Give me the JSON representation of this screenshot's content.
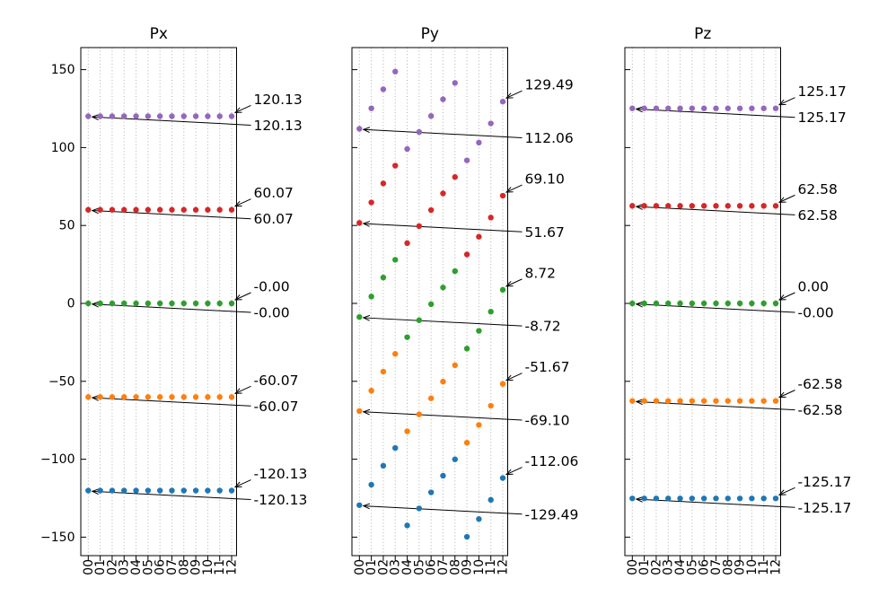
{
  "figure": {
    "background": "#ffffff",
    "grid_color": "#b0b0b0",
    "axis_color": "#000000",
    "annotation_color": "#000000"
  },
  "chart_data": [
    {
      "type": "scatter",
      "title": "Px",
      "x_labels": [
        "00",
        "01",
        "02",
        "03",
        "04",
        "05",
        "06",
        "07",
        "08",
        "09",
        "10",
        "11",
        "12"
      ],
      "ylim": [
        -163,
        164
      ],
      "yticks": [
        150,
        100,
        50,
        0,
        -50,
        -100,
        -150
      ],
      "ytick_labels": [
        "150",
        "100",
        "50",
        "0",
        "−50",
        "−100",
        "−150"
      ],
      "show_ytick_labels": true,
      "grid": "vertical-dotted",
      "legend": "none",
      "series": [
        {
          "name": "series-purple",
          "color": "#9467bd",
          "values": [
            120.13,
            120.13,
            120.13,
            120.13,
            120.13,
            120.13,
            120.13,
            120.13,
            120.13,
            120.13,
            120.13,
            120.13,
            120.13
          ]
        },
        {
          "name": "series-red",
          "color": "#d62728",
          "values": [
            60.07,
            60.07,
            60.07,
            60.07,
            60.07,
            60.07,
            60.07,
            60.07,
            60.07,
            60.07,
            60.07,
            60.07,
            60.07
          ]
        },
        {
          "name": "series-green",
          "color": "#2ca02c",
          "values": [
            0,
            0,
            0,
            0,
            0,
            0,
            0,
            0,
            0,
            0,
            0,
            0,
            0
          ]
        },
        {
          "name": "series-orange",
          "color": "#ff7f0e",
          "values": [
            -60.07,
            -60.07,
            -60.07,
            -60.07,
            -60.07,
            -60.07,
            -60.07,
            -60.07,
            -60.07,
            -60.07,
            -60.07,
            -60.07,
            -60.07
          ]
        },
        {
          "name": "series-blue",
          "color": "#1f77b4",
          "values": [
            -120.13,
            -120.13,
            -120.13,
            -120.13,
            -120.13,
            -120.13,
            -120.13,
            -120.13,
            -120.13,
            -120.13,
            -120.13,
            -120.13,
            -120.13
          ]
        }
      ],
      "annotations": [
        {
          "label": "120.13",
          "series": 0,
          "point": "last"
        },
        {
          "label": "120.13",
          "series": 0,
          "point": "first"
        },
        {
          "label": "60.07",
          "series": 1,
          "point": "last"
        },
        {
          "label": "60.07",
          "series": 1,
          "point": "first"
        },
        {
          "label": "-0.00",
          "series": 2,
          "point": "last"
        },
        {
          "label": "-0.00",
          "series": 2,
          "point": "first"
        },
        {
          "label": "-60.07",
          "series": 3,
          "point": "last"
        },
        {
          "label": "-60.07",
          "series": 3,
          "point": "first"
        },
        {
          "label": "-120.13",
          "series": 4,
          "point": "last"
        },
        {
          "label": "-120.13",
          "series": 4,
          "point": "first"
        }
      ]
    },
    {
      "type": "scatter",
      "title": "Py",
      "x_labels": [
        "00",
        "01",
        "02",
        "03",
        "04",
        "05",
        "06",
        "07",
        "08",
        "09",
        "10",
        "11",
        "12"
      ],
      "ylim": [
        -163,
        164
      ],
      "yticks": [
        150,
        100,
        50,
        0,
        -50,
        -100,
        -150
      ],
      "ytick_labels": [],
      "show_ytick_labels": false,
      "grid": "vertical-dotted",
      "legend": "none",
      "series": [
        {
          "name": "series-purple",
          "color": "#9467bd",
          "values": [
            112.06,
            125.18,
            137.38,
            148.78,
            99.08,
            109.98,
            120.28,
            130.98,
            141.48,
            91.78,
            103.18,
            115.48,
            129.49
          ]
        },
        {
          "name": "series-red",
          "color": "#d62728",
          "values": [
            51.67,
            64.79,
            76.99,
            88.39,
            38.69,
            49.59,
            59.89,
            70.59,
            81.09,
            31.39,
            42.79,
            55.09,
            69.1
          ]
        },
        {
          "name": "series-green",
          "color": "#2ca02c",
          "values": [
            -8.72,
            4.4,
            16.6,
            28.0,
            -21.7,
            -10.8,
            -0.5,
            10.2,
            20.7,
            -29.0,
            -17.6,
            -5.3,
            8.72
          ]
        },
        {
          "name": "series-orange",
          "color": "#ff7f0e",
          "values": [
            -69.1,
            -55.99,
            -43.79,
            -32.39,
            -82.09,
            -71.19,
            -60.89,
            -50.19,
            -39.69,
            -89.39,
            -77.99,
            -65.69,
            -51.67
          ]
        },
        {
          "name": "series-blue",
          "color": "#1f77b4",
          "values": [
            -129.49,
            -116.38,
            -104.18,
            -92.78,
            -142.48,
            -131.58,
            -121.28,
            -110.58,
            -100.08,
            -149.78,
            -138.38,
            -126.08,
            -112.06
          ]
        }
      ],
      "annotations": [
        {
          "label": "129.49",
          "series": 0,
          "point": "last"
        },
        {
          "label": "112.06",
          "series": 0,
          "point": "first"
        },
        {
          "label": "69.10",
          "series": 1,
          "point": "last"
        },
        {
          "label": "51.67",
          "series": 1,
          "point": "first"
        },
        {
          "label": "8.72",
          "series": 2,
          "point": "last"
        },
        {
          "label": "-8.72",
          "series": 2,
          "point": "first"
        },
        {
          "label": "-51.67",
          "series": 3,
          "point": "last"
        },
        {
          "label": "-69.10",
          "series": 3,
          "point": "first"
        },
        {
          "label": "-112.06",
          "series": 4,
          "point": "last"
        },
        {
          "label": "-129.49",
          "series": 4,
          "point": "first"
        }
      ]
    },
    {
      "type": "scatter",
      "title": "Pz",
      "x_labels": [
        "00",
        "01",
        "02",
        "03",
        "04",
        "05",
        "06",
        "07",
        "08",
        "09",
        "10",
        "11",
        "12"
      ],
      "ylim": [
        -163,
        164
      ],
      "yticks": [
        150,
        100,
        50,
        0,
        -50,
        -100,
        -150
      ],
      "ytick_labels": [],
      "show_ytick_labels": false,
      "grid": "vertical-dotted",
      "legend": "none",
      "series": [
        {
          "name": "series-purple",
          "color": "#9467bd",
          "values": [
            125.17,
            125.17,
            125.17,
            125.17,
            125.17,
            125.17,
            125.17,
            125.17,
            125.17,
            125.17,
            125.17,
            125.17,
            125.17
          ]
        },
        {
          "name": "series-red",
          "color": "#d62728",
          "values": [
            62.58,
            62.58,
            62.58,
            62.58,
            62.58,
            62.58,
            62.58,
            62.58,
            62.58,
            62.58,
            62.58,
            62.58,
            62.58
          ]
        },
        {
          "name": "series-green",
          "color": "#2ca02c",
          "values": [
            0,
            0,
            0,
            0,
            0,
            0,
            0,
            0,
            0,
            0,
            0,
            0,
            0
          ]
        },
        {
          "name": "series-orange",
          "color": "#ff7f0e",
          "values": [
            -62.58,
            -62.58,
            -62.58,
            -62.58,
            -62.58,
            -62.58,
            -62.58,
            -62.58,
            -62.58,
            -62.58,
            -62.58,
            -62.58,
            -62.58
          ]
        },
        {
          "name": "series-blue",
          "color": "#1f77b4",
          "values": [
            -125.17,
            -125.17,
            -125.17,
            -125.17,
            -125.17,
            -125.17,
            -125.17,
            -125.17,
            -125.17,
            -125.17,
            -125.17,
            -125.17,
            -125.17
          ]
        }
      ],
      "annotations": [
        {
          "label": "125.17",
          "series": 0,
          "point": "last"
        },
        {
          "label": "125.17",
          "series": 0,
          "point": "first"
        },
        {
          "label": "62.58",
          "series": 1,
          "point": "last"
        },
        {
          "label": "62.58",
          "series": 1,
          "point": "first"
        },
        {
          "label": "0.00",
          "series": 2,
          "point": "last"
        },
        {
          "label": "-0.00",
          "series": 2,
          "point": "first"
        },
        {
          "label": "-62.58",
          "series": 3,
          "point": "last"
        },
        {
          "label": "-62.58",
          "series": 3,
          "point": "first"
        },
        {
          "label": "-125.17",
          "series": 4,
          "point": "last"
        },
        {
          "label": "-125.17",
          "series": 4,
          "point": "first"
        }
      ]
    }
  ]
}
